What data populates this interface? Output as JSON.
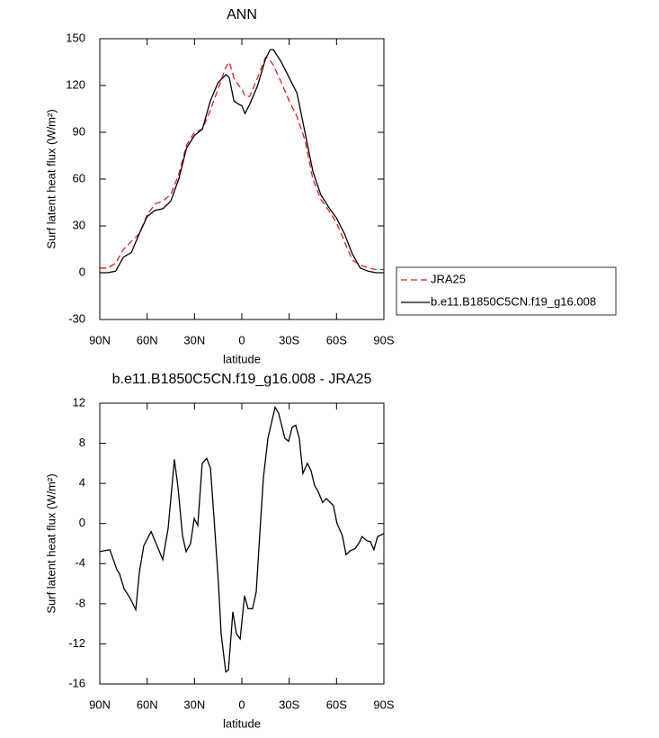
{
  "chart_data": [
    {
      "type": "line",
      "title": "ANN",
      "xlabel": "latitude",
      "ylabel": "Surf latent heat flux (W/m²)",
      "x": [
        90,
        85,
        80,
        75,
        70,
        65,
        60,
        55,
        50,
        45,
        40,
        35,
        30,
        25,
        20,
        15,
        10,
        8,
        5,
        2,
        0,
        -2,
        -5,
        -10,
        -15,
        -18,
        -20,
        -25,
        -30,
        -35,
        -40,
        -45,
        -50,
        -55,
        -60,
        -65,
        -70,
        -75,
        -80,
        -85,
        -90
      ],
      "series": [
        {
          "name": "JRA25",
          "color": "#e41a1c",
          "linestyle": "dashed",
          "values": [
            3,
            3,
            6,
            15,
            20,
            25,
            37,
            44,
            46,
            50,
            63,
            82,
            90,
            92,
            104,
            118,
            132,
            135,
            125,
            120,
            118,
            113,
            113,
            125,
            138,
            136,
            133,
            122,
            110,
            100,
            85,
            60,
            47,
            40,
            32,
            20,
            8,
            5,
            3,
            2,
            2
          ]
        },
        {
          "name": "b.e11.B1850C5CN.f19_g16.008",
          "color": "#000000",
          "linestyle": "solid",
          "values": [
            0,
            0,
            1,
            10,
            13,
            25,
            36,
            40,
            41,
            46,
            60,
            80,
            88,
            92,
            110,
            122,
            127,
            125,
            110,
            108,
            107,
            102,
            108,
            120,
            137,
            143,
            143,
            135,
            125,
            115,
            90,
            65,
            50,
            42,
            35,
            25,
            12,
            3,
            1,
            0,
            0
          ]
        }
      ],
      "xlim": [
        90,
        -90
      ],
      "xticks": [
        {
          "value": 90,
          "label": "90N"
        },
        {
          "value": 60,
          "label": "60N"
        },
        {
          "value": 30,
          "label": "30N"
        },
        0,
        {
          "value": -30,
          "label": "30S"
        },
        {
          "value": -60,
          "label": "60S"
        },
        {
          "value": -90,
          "label": "90S"
        }
      ],
      "ylim": [
        -30,
        150
      ],
      "yticks": [
        -30,
        0,
        30,
        60,
        90,
        120,
        150
      ],
      "legend": "outside-right"
    },
    {
      "type": "line",
      "title": "b.e11.B1850C5CN.f19_g16.008 - JRA25",
      "xlabel": "latitude",
      "ylabel": "Surf latent heat flux (W/m²)",
      "x": [
        90,
        83.7,
        79.2,
        77.5,
        74.6,
        70.6,
        67.2,
        64.9,
        62.1,
        57.5,
        53,
        50.1,
        46.7,
        42.7,
        40.4,
        37.6,
        35.3,
        32.5,
        30.2,
        27.9,
        25.1,
        22.2,
        19.9,
        17.6,
        14.8,
        13.1,
        10.2,
        8.5,
        5.7,
        3.4,
        1.1,
        -1.7,
        -4,
        -6.8,
        -9.1,
        -11.4,
        -13.6,
        -16.5,
        -21.1,
        -23.3,
        -27.3,
        -29.6,
        -31.9,
        -34.1,
        -36.4,
        -38.7,
        -41.5,
        -43.8,
        -46.1,
        -48.3,
        -51.2,
        -53.5,
        -58,
        -60.3,
        -63.7,
        -66,
        -68.8,
        -71.7,
        -74,
        -76.2,
        -79.1,
        -81.4,
        -83.7,
        -86,
        -90
      ],
      "values": [
        -2.8,
        -2.6,
        -4.6,
        -5,
        -6.5,
        -7.5,
        -8.6,
        -4.8,
        -2.2,
        -0.8,
        -2.5,
        -3.6,
        -0.5,
        6.4,
        3.5,
        -1.2,
        -2.8,
        -2,
        0.5,
        -0.2,
        6,
        6.5,
        5.5,
        0.5,
        -6,
        -11,
        -14.8,
        -14.6,
        -8.8,
        -11,
        -11.5,
        -7.2,
        -8.5,
        -8.5,
        -6.8,
        -1,
        4.5,
        8.5,
        11.6,
        11,
        8.5,
        8.2,
        9.6,
        9.8,
        8.5,
        5,
        6,
        5.3,
        3.8,
        3.2,
        2.1,
        2.5,
        1.8,
        0,
        -1.2,
        -3.1,
        -2.7,
        -2.5,
        -2,
        -1.3,
        -1.7,
        -1.8,
        -2.6,
        -1.3,
        -1
      ],
      "color": "#000000",
      "linestyle": "solid",
      "xlim": [
        90,
        -90
      ],
      "xticks": [
        {
          "value": 90,
          "label": "90N"
        },
        {
          "value": 60,
          "label": "60N"
        },
        {
          "value": 30,
          "label": "30N"
        },
        0,
        {
          "value": -30,
          "label": "30S"
        },
        {
          "value": -60,
          "label": "60S"
        },
        {
          "value": -90,
          "label": "90S"
        }
      ],
      "ylim": [
        -16,
        12
      ],
      "yticks": [
        -16,
        -12,
        -8,
        -4,
        0,
        4,
        8,
        12
      ]
    }
  ]
}
